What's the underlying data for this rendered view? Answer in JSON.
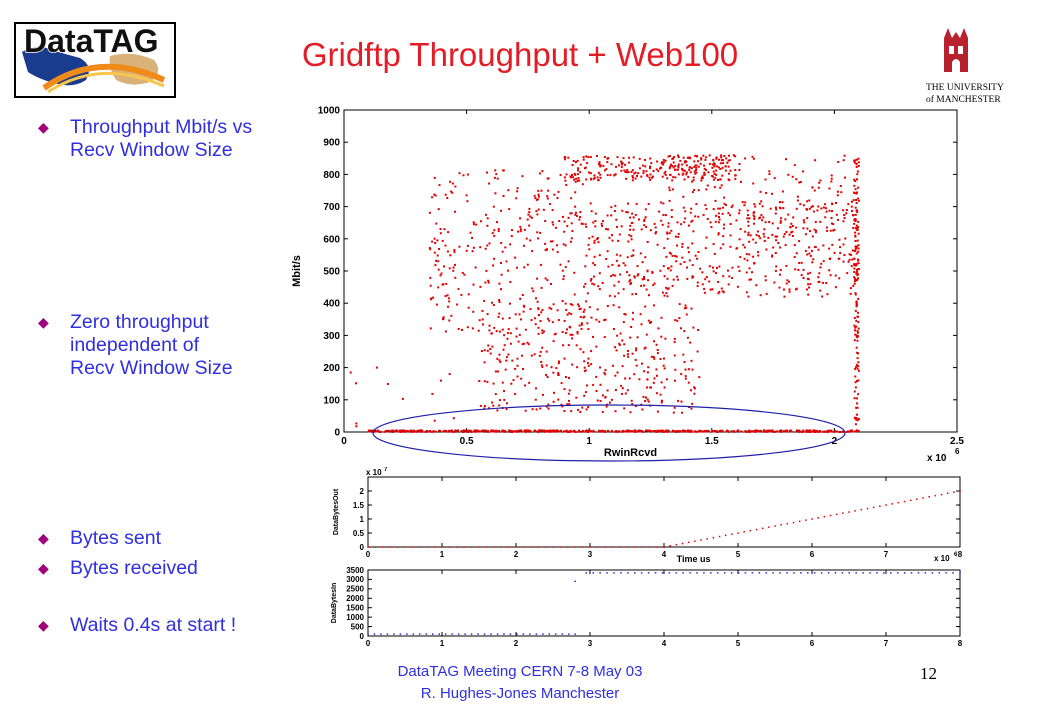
{
  "slide": {
    "title": "Gridftp Throughput + Web100",
    "logo_text": "DataTAG",
    "university": {
      "line1": "THE UNIVERSITY",
      "line2": "of MANCHESTER"
    },
    "bullets": [
      {
        "lines": [
          "Throughput Mbit/s vs",
          "Recv Window Size"
        ]
      },
      {
        "lines": [
          "Zero throughput",
          "independent  of",
          "Recv Window Size"
        ]
      },
      {
        "lines": [
          "Bytes sent"
        ]
      },
      {
        "lines": [
          "Bytes received"
        ]
      },
      {
        "lines": [
          "Waits 0.4s at start !"
        ]
      }
    ],
    "bullet_symbol": "◆",
    "footer": {
      "line1": "DataTAG Meeting CERN 7-8 May 03",
      "line2": "R. Hughes-Jones  Manchester"
    },
    "page_number": "12",
    "colors": {
      "title": "#e31c25",
      "text": "#2f2fe0",
      "bullet": "#a0007a",
      "points": "#e00000",
      "ellipse": "#1f1fa8",
      "blue_points": "#2a2ae0"
    }
  },
  "chart_data": [
    {
      "type": "scatter",
      "xlabel": "RwinRcvd",
      "ylabel": "Mbit/s",
      "x_multiplier": "x 10",
      "x_exponent": "6",
      "xlim": [
        0,
        2.5
      ],
      "ylim": [
        0,
        1000
      ],
      "xticks": [
        0,
        0.5,
        1,
        1.5,
        2,
        2.5
      ],
      "xtick_labels": [
        "0",
        "0.5",
        "1",
        "1.5",
        "2",
        "2.5"
      ],
      "yticks": [
        0,
        100,
        200,
        300,
        400,
        500,
        600,
        700,
        800,
        900,
        1000
      ],
      "ytick_labels": [
        "0",
        "100",
        "200",
        "300",
        "400",
        "500",
        "600",
        "700",
        "800",
        "900",
        "1000"
      ],
      "grid": false,
      "annotation": "ellipse around the points at zero throughput",
      "clusters": [
        {
          "name": "plateau",
          "x": [
            0.9,
            1.6
          ],
          "y": [
            780,
            860
          ],
          "n": 260
        },
        {
          "name": "ramp",
          "x": [
            0.35,
            1.0
          ],
          "y": [
            300,
            820
          ],
          "n": 320
        },
        {
          "name": "middle band",
          "x": [
            1.0,
            2.1
          ],
          "y": [
            420,
            720
          ],
          "n": 520
        },
        {
          "name": "upper scatter",
          "x": [
            1.3,
            2.1
          ],
          "y": [
            600,
            860
          ],
          "n": 120
        },
        {
          "name": "lower cloud",
          "x": [
            0.55,
            1.45
          ],
          "y": [
            60,
            400
          ],
          "n": 360
        },
        {
          "name": "zero line",
          "x": [
            0.1,
            2.1
          ],
          "y": [
            0,
            5
          ],
          "n": 520
        },
        {
          "name": "vertical at max window",
          "x": [
            2.08,
            2.1
          ],
          "y": [
            0,
            850
          ],
          "n": 140
        },
        {
          "name": "sparse low",
          "x": [
            0.02,
            0.45
          ],
          "y": [
            0,
            200
          ],
          "n": 12
        }
      ]
    },
    {
      "type": "scatter",
      "xlabel": "Time us",
      "ylabel": "DataBytesOut",
      "y_multiplier": "x 10",
      "y_exponent": "7",
      "x_multiplier": "x 10",
      "x_exponent": "6",
      "xlim": [
        0,
        8
      ],
      "ylim": [
        0,
        2.5
      ],
      "xticks": [
        0,
        1,
        2,
        3,
        4,
        5,
        6,
        7,
        8
      ],
      "xtick_labels": [
        "0",
        "1",
        "2",
        "3",
        "4",
        "5",
        "6",
        "7",
        "8"
      ],
      "yticks": [
        0,
        0.5,
        1,
        1.5,
        2
      ],
      "ytick_labels": [
        "0",
        "0.5",
        "1",
        "1.5",
        "2"
      ],
      "series": [
        {
          "segments": [
            {
              "x": [
                0,
                4.0
              ],
              "y": [
                0,
                0
              ]
            },
            {
              "x": [
                4.0,
                8.0
              ],
              "y": [
                0,
                2.0
              ]
            }
          ]
        }
      ]
    },
    {
      "type": "scatter",
      "xlabel": "",
      "ylabel": "DataBytesIn",
      "xlim": [
        0,
        8
      ],
      "ylim": [
        0,
        3500
      ],
      "xticks": [
        0,
        1,
        2,
        3,
        4,
        5,
        6,
        7,
        8
      ],
      "xtick_labels": [
        "0",
        "1",
        "2",
        "3",
        "4",
        "5",
        "6",
        "7",
        "8"
      ],
      "yticks": [
        0,
        500,
        1000,
        1500,
        2000,
        2500,
        3000,
        3500
      ],
      "ytick_labels": [
        "0",
        "500",
        "1000",
        "1500",
        "2000",
        "2500",
        "3000",
        "3500"
      ],
      "series": [
        {
          "segments": [
            {
              "x": [
                0,
                2.8
              ],
              "y": [
                100,
                100
              ]
            },
            {
              "x": [
                2.8,
                2.8
              ],
              "y": [
                2900,
                2900
              ]
            },
            {
              "x": [
                2.95,
                8.0
              ],
              "y": [
                3350,
                3350
              ]
            }
          ]
        }
      ]
    }
  ]
}
